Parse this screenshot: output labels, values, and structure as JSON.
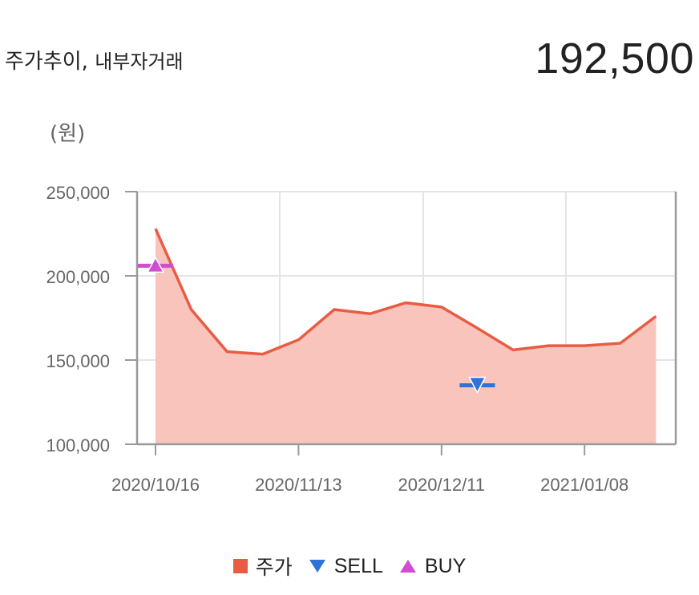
{
  "header": {
    "title": "주가추이,",
    "subtitle": "내부자거래",
    "price": "192,500"
  },
  "chart_data": {
    "type": "line",
    "unit_label": "(원)",
    "ylim": [
      100000,
      250000
    ],
    "yticks": [
      100000,
      150000,
      200000,
      250000
    ],
    "ytick_labels": [
      "100,000",
      "150,000",
      "200,000",
      "250,000"
    ],
    "xtick_labels": [
      "2020/10/16",
      "2020/11/13",
      "2020/12/11",
      "2021/01/08"
    ],
    "grid": true,
    "legend_position": "bottom",
    "series": [
      {
        "name": "주가",
        "color": "#e85c44",
        "fill": "#f8c4bb",
        "x_index": [
          0,
          1,
          2,
          3,
          4,
          5,
          6,
          7,
          8,
          9,
          10,
          11,
          12,
          13,
          14
        ],
        "values": [
          228000,
          180000,
          155000,
          153500,
          162000,
          180000,
          177500,
          184000,
          181500,
          169000,
          156000,
          158500,
          158500,
          160000,
          176000
        ]
      },
      {
        "name": "SELL",
        "color": "#2f72d8",
        "marker": "triangle-down",
        "x_index": [
          9
        ],
        "values": [
          135000
        ]
      },
      {
        "name": "BUY",
        "color": "#cf4fcf",
        "marker": "triangle-up",
        "x_index": [
          0
        ],
        "values": [
          206000
        ]
      }
    ]
  },
  "legend": [
    {
      "label": "주가",
      "color": "#e85c44",
      "shape": "square"
    },
    {
      "label": "SELL",
      "color": "#2f72d8",
      "shape": "triangle-down"
    },
    {
      "label": "BUY",
      "color": "#cf4fcf",
      "shape": "triangle-up"
    }
  ]
}
